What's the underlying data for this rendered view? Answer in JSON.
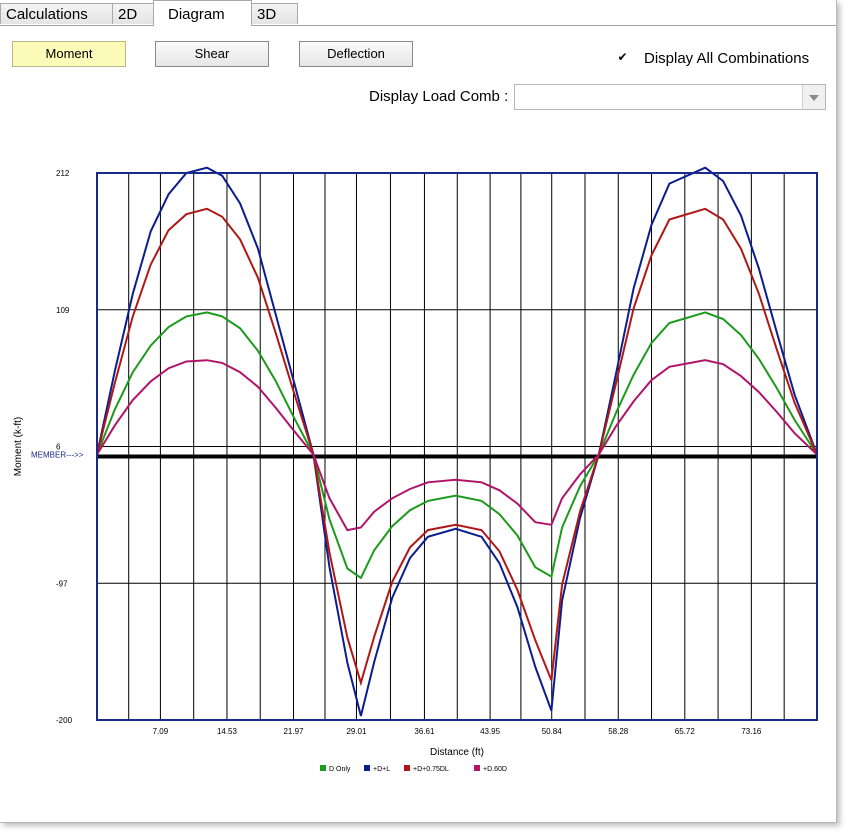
{
  "tabs": [
    {
      "label": "Calculations"
    },
    {
      "label": "2D"
    },
    {
      "label": "Diagram"
    },
    {
      "label": "3D"
    }
  ],
  "buttons": {
    "moment": "Moment",
    "shear": "Shear",
    "deflection": "Deflection"
  },
  "display_all": {
    "label": "Display All Combinations",
    "checked": true,
    "mark": "✔"
  },
  "load_comb": {
    "label": "Display Load Comb :",
    "value": ""
  },
  "chart_data": {
    "type": "line",
    "xlabel": "Distance (ft)",
    "ylabel": "Moment (k-ft)",
    "xlim": [
      0,
      80.5
    ],
    "ylim": [
      -200,
      212
    ],
    "x_ticks": [
      7.09,
      14.53,
      21.97,
      29.01,
      36.61,
      43.95,
      50.84,
      58.28,
      65.72,
      73.16
    ],
    "y_ticks": [
      212,
      109,
      6,
      -97,
      -200
    ],
    "member_label": "MEMBER--->>",
    "member_line_y": 0,
    "grid": true,
    "legend_position": "bottom",
    "series": [
      {
        "name": "D Only",
        "color": "#1c9a1c",
        "x": [
          0,
          2,
          4,
          6,
          8,
          10,
          12.3,
          14,
          16,
          18,
          20,
          22,
          24.2,
          26,
          28,
          29.5,
          31,
          33,
          35,
          37,
          40.1,
          43,
          45,
          47,
          49,
          50.8,
          52,
          54,
          56.1,
          58,
          60,
          62,
          64,
          68,
          70,
          72,
          74,
          76,
          78,
          80.5
        ],
        "y": [
          0,
          34,
          62,
          82,
          96,
          104,
          107,
          104,
          95,
          78,
          55,
          28,
          0,
          -49,
          -86,
          -93,
          -72,
          -54,
          -42,
          -35,
          -31,
          -35,
          -45,
          -61,
          -85,
          -92,
          -55,
          -24,
          0,
          31,
          60,
          84,
          99,
          107,
          102,
          90,
          72,
          50,
          26,
          0
        ]
      },
      {
        "name": "+D+L",
        "color": "#0b1d8f",
        "x": [
          0,
          2,
          4,
          6,
          8,
          10,
          12.3,
          14,
          16,
          18,
          20,
          22,
          24.2,
          26,
          28,
          29.5,
          31,
          33,
          35,
          37,
          40.1,
          43,
          45,
          47,
          49,
          50.8,
          52,
          54,
          56.1,
          58,
          60,
          62,
          64,
          68,
          70,
          72,
          74,
          76,
          78,
          80.5
        ],
        "y": [
          0,
          63,
          121,
          168,
          196,
          212,
          216,
          210,
          189,
          155,
          105,
          55,
          0,
          -85,
          -157,
          -197,
          -156,
          -108,
          -78,
          -62,
          -56,
          -62,
          -82,
          -115,
          -160,
          -193,
          -110,
          -48,
          0,
          60,
          125,
          173,
          204,
          216,
          206,
          180,
          140,
          92,
          45,
          0
        ]
      },
      {
        "name": "+D+0.75DL",
        "color": "#b01818",
        "x": [
          0,
          2,
          4,
          6,
          8,
          10,
          12.3,
          14,
          16,
          18,
          20,
          22,
          24.2,
          26,
          28,
          29.5,
          31,
          33,
          35,
          37,
          40.1,
          43,
          45,
          47,
          49,
          50.8,
          52,
          54,
          56.1,
          58,
          60,
          62,
          64,
          68,
          70,
          72,
          74,
          76,
          78,
          80.5
        ],
        "y": [
          0,
          54,
          104,
          143,
          169,
          181,
          185,
          179,
          162,
          133,
          91,
          47,
          0,
          -74,
          -138,
          -172,
          -137,
          -96,
          -70,
          -57,
          -53,
          -57,
          -73,
          -102,
          -140,
          -170,
          -98,
          -43,
          0,
          53,
          110,
          150,
          177,
          185,
          177,
          155,
          121,
          79,
          39,
          0
        ]
      },
      {
        "name": "+D.60D",
        "color": "#b0146a",
        "x": [
          0,
          2,
          4,
          6,
          8,
          10,
          12.3,
          14,
          16,
          18,
          20,
          22,
          24.2,
          26,
          28,
          29.5,
          31,
          33,
          35,
          37,
          40.1,
          43,
          45,
          47,
          49,
          50.8,
          52,
          54,
          56.1,
          58,
          60,
          62,
          64,
          68,
          70,
          72,
          74,
          76,
          78,
          80.5
        ],
        "y": [
          0,
          22,
          41,
          55,
          65,
          70,
          71,
          69,
          62,
          51,
          35,
          18,
          0,
          -33,
          -57,
          -55,
          -43,
          -33,
          -26,
          -21,
          -19,
          -21,
          -27,
          -37,
          -51,
          -53,
          -33,
          -15,
          0,
          21,
          40,
          56,
          66,
          71,
          68,
          59,
          47,
          32,
          16,
          0
        ]
      }
    ]
  }
}
